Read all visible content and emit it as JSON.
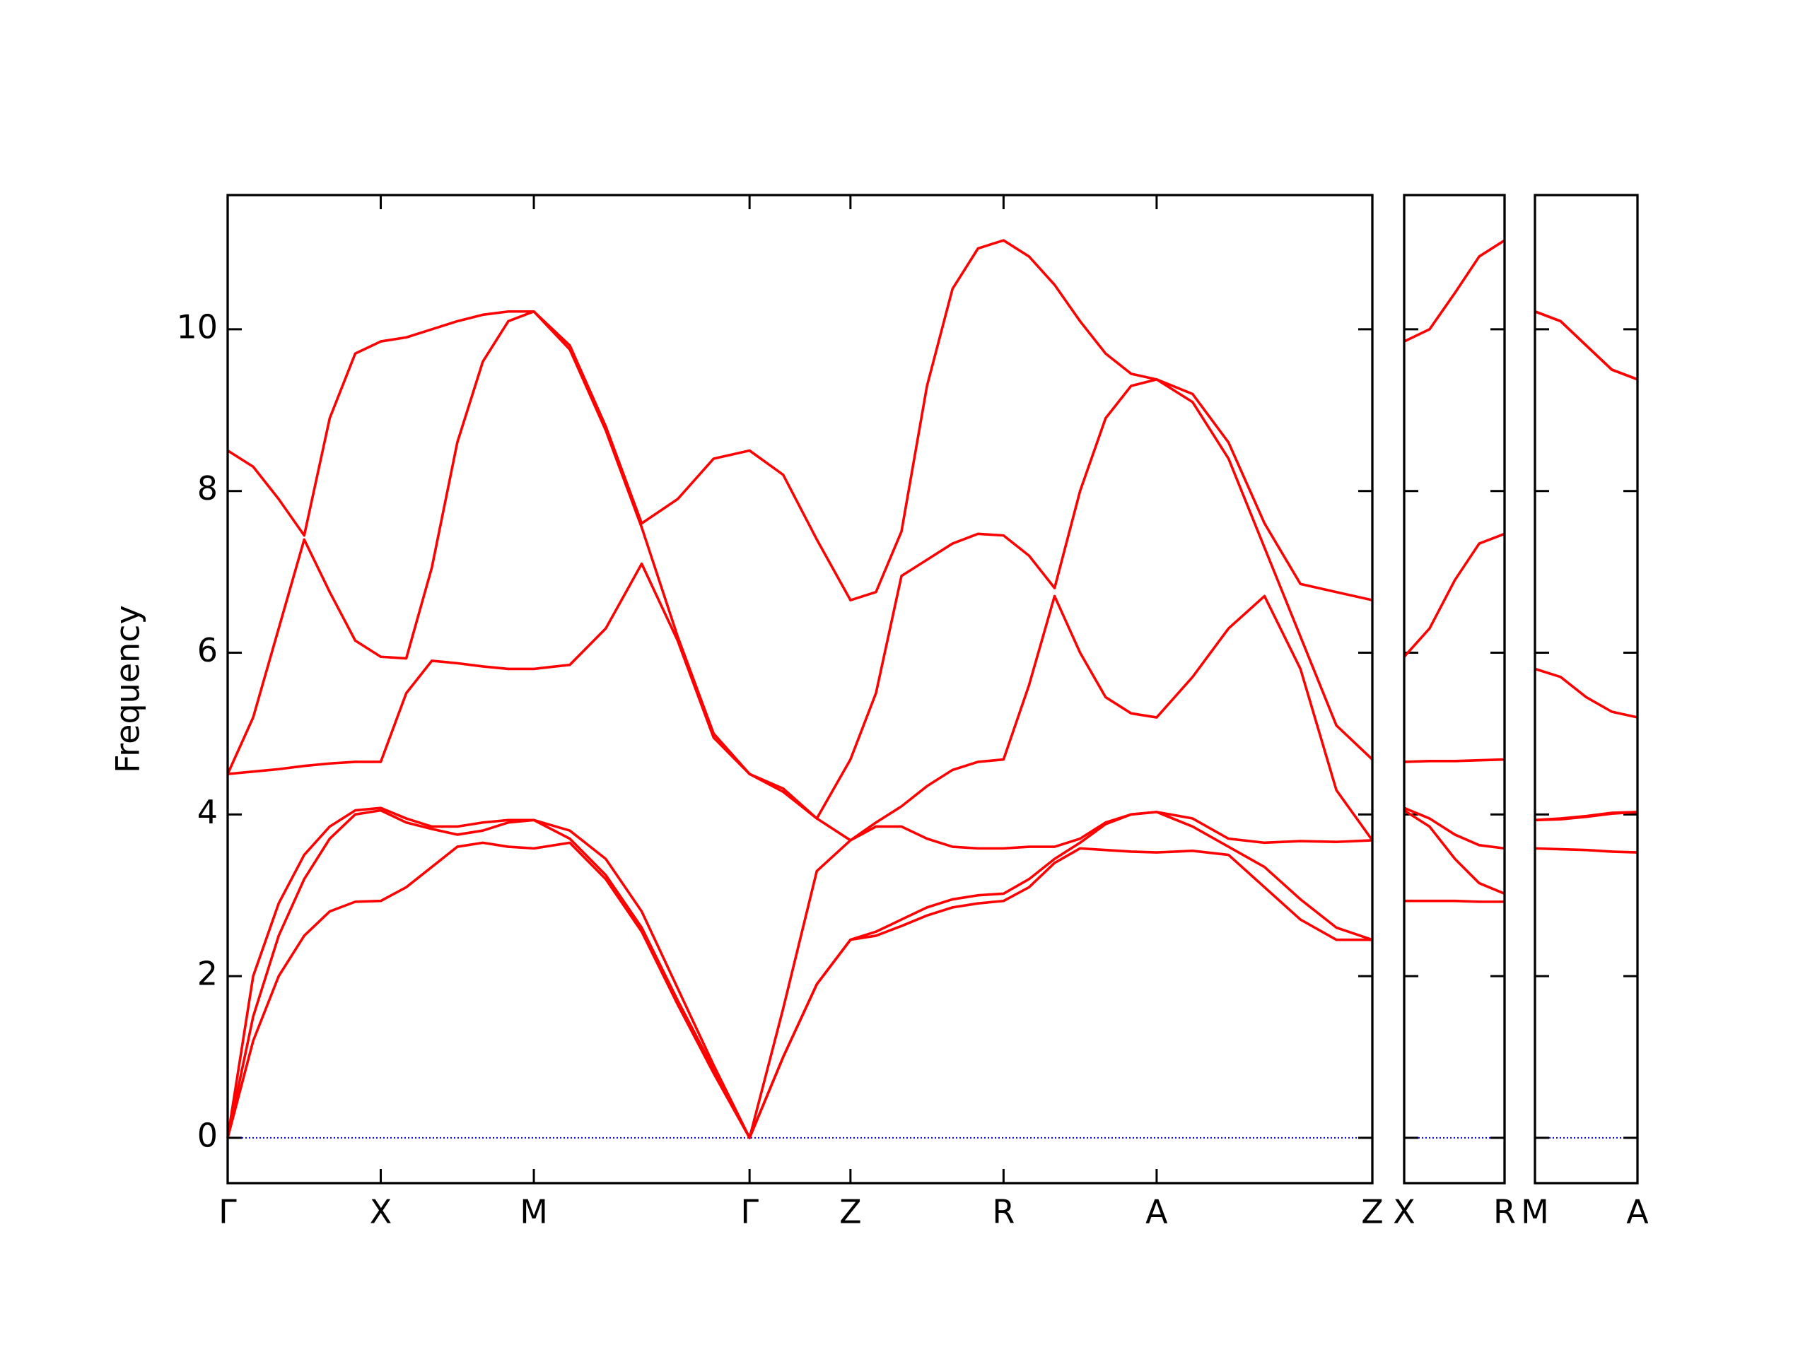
{
  "chart_data": [
    {
      "type": "line",
      "ylabel": "Frequency",
      "x": [
        0,
        0.22,
        0.44,
        0.66,
        0.88,
        1.1,
        1.32,
        1.54,
        1.76,
        1.98,
        2.2,
        2.42,
        2.64,
        2.95,
        3.26,
        3.57,
        3.88,
        4.19,
        4.5,
        4.79,
        5.08,
        5.37,
        5.59,
        5.81,
        6.03,
        6.25,
        6.47,
        6.69,
        6.91,
        7.13,
        7.35,
        7.57,
        7.79,
        8.01,
        8.32,
        8.63,
        8.94,
        9.25,
        9.56,
        9.87
      ],
      "series": [
        {
          "color": "#ff0000",
          "values": [
            8.5,
            8.3,
            7.9,
            7.45,
            8.9,
            9.7,
            9.85,
            9.9,
            10.0,
            10.1,
            10.18,
            10.22,
            10.22,
            9.8,
            8.8,
            7.6,
            7.9,
            8.4,
            8.5,
            8.2,
            7.4,
            6.65,
            6.75,
            7.5,
            9.3,
            10.5,
            11.0,
            11.1,
            10.9,
            10.55,
            10.1,
            9.7,
            9.45,
            9.38,
            9.2,
            8.6,
            7.6,
            6.85,
            6.75,
            6.65
          ]
        },
        {
          "color": "#ff0000",
          "values": [
            4.5,
            5.2,
            6.3,
            7.4,
            6.75,
            6.15,
            5.95,
            5.93,
            7.05,
            8.6,
            9.6,
            10.1,
            10.22,
            9.75,
            8.75,
            7.55,
            6.2,
            5.0,
            4.5,
            4.32,
            3.95,
            4.68,
            5.5,
            6.95,
            7.15,
            7.35,
            7.47,
            7.45,
            7.2,
            6.8,
            8.0,
            8.9,
            9.3,
            9.38,
            9.1,
            8.4,
            7.3,
            6.2,
            5.1,
            4.68
          ]
        },
        {
          "color": "#ff0000",
          "values": [
            4.5,
            4.53,
            4.56,
            4.6,
            4.63,
            4.65,
            4.65,
            5.5,
            5.9,
            5.87,
            5.83,
            5.8,
            5.8,
            5.85,
            6.3,
            7.1,
            6.15,
            4.95,
            4.5,
            4.28,
            3.95,
            3.68,
            3.9,
            4.1,
            4.35,
            4.55,
            4.65,
            4.68,
            5.6,
            6.7,
            6.0,
            5.45,
            5.25,
            5.2,
            5.7,
            6.3,
            6.7,
            5.8,
            4.3,
            3.68
          ]
        },
        {
          "color": "#ff0000",
          "values": [
            0,
            2.0,
            2.9,
            3.5,
            3.85,
            4.05,
            4.08,
            3.95,
            3.85,
            3.85,
            3.9,
            3.93,
            3.93,
            3.8,
            3.45,
            2.8,
            1.85,
            0.9,
            0,
            1.6,
            3.3,
            3.68,
            3.85,
            3.85,
            3.7,
            3.6,
            3.58,
            3.58,
            3.6,
            3.6,
            3.7,
            3.9,
            4.0,
            4.03,
            3.95,
            3.7,
            3.65,
            3.67,
            3.66,
            3.68
          ]
        },
        {
          "color": "#ff0000",
          "values": [
            0,
            1.5,
            2.5,
            3.2,
            3.7,
            4.0,
            4.05,
            3.9,
            3.82,
            3.75,
            3.8,
            3.9,
            3.93,
            3.7,
            3.25,
            2.6,
            1.7,
            0.85,
            0,
            1.0,
            1.9,
            2.45,
            2.55,
            2.7,
            2.85,
            2.95,
            3.0,
            3.02,
            3.2,
            3.45,
            3.65,
            3.88,
            4.0,
            4.03,
            3.85,
            3.6,
            3.35,
            2.95,
            2.6,
            2.45
          ]
        },
        {
          "color": "#ff0000",
          "values": [
            0,
            1.2,
            2.0,
            2.5,
            2.8,
            2.92,
            2.93,
            3.1,
            3.35,
            3.6,
            3.65,
            3.6,
            3.58,
            3.65,
            3.2,
            2.55,
            1.65,
            0.8,
            0,
            1.0,
            1.9,
            2.45,
            2.5,
            2.62,
            2.75,
            2.85,
            2.9,
            2.93,
            3.1,
            3.4,
            3.58,
            3.56,
            3.54,
            3.53,
            3.55,
            3.5,
            3.1,
            2.7,
            2.45,
            2.45
          ]
        }
      ],
      "xlim": [
        0,
        9.87
      ],
      "xticks": [
        {
          "value": 0,
          "label": "Γ"
        },
        {
          "value": 1.32,
          "label": "X"
        },
        {
          "value": 2.64,
          "label": "M"
        },
        {
          "value": 4.5,
          "label": "Γ"
        },
        {
          "value": 5.37,
          "label": "Z"
        },
        {
          "value": 6.69,
          "label": "R"
        },
        {
          "value": 8.01,
          "label": "A"
        },
        {
          "value": 9.87,
          "label": "Z"
        }
      ],
      "ylim": [
        -0.56,
        11.66
      ],
      "yticks": [
        0,
        2,
        4,
        6,
        8,
        10
      ],
      "ytick_labels": true,
      "hlines": [
        {
          "value": 0,
          "color": "#0000ff"
        }
      ]
    },
    {
      "type": "line",
      "x": [
        0,
        0.22,
        0.44,
        0.65,
        0.87
      ],
      "series": [
        {
          "color": "#ff0000",
          "values": [
            9.85,
            10.0,
            10.45,
            10.9,
            11.1
          ]
        },
        {
          "color": "#ff0000",
          "values": [
            5.95,
            6.3,
            6.9,
            7.35,
            7.47
          ]
        },
        {
          "color": "#ff0000",
          "values": [
            4.65,
            4.66,
            4.66,
            4.67,
            4.68
          ]
        },
        {
          "color": "#ff0000",
          "values": [
            4.08,
            3.95,
            3.75,
            3.62,
            3.58
          ]
        },
        {
          "color": "#ff0000",
          "values": [
            4.05,
            3.85,
            3.45,
            3.15,
            3.02
          ]
        },
        {
          "color": "#ff0000",
          "values": [
            2.93,
            2.93,
            2.93,
            2.92,
            2.92
          ]
        }
      ],
      "xlim": [
        0,
        0.87
      ],
      "xticks": [
        {
          "value": 0,
          "label": "X"
        },
        {
          "value": 0.87,
          "label": "R"
        }
      ],
      "ylim": [
        -0.56,
        11.66
      ],
      "yticks": [
        0,
        2,
        4,
        6,
        8,
        10
      ],
      "ytick_labels": false,
      "hlines": [
        {
          "value": 0,
          "color": "#0000ff"
        }
      ]
    },
    {
      "type": "line",
      "x": [
        0,
        0.22,
        0.44,
        0.66,
        0.88
      ],
      "series": [
        {
          "color": "#ff0000",
          "values": [
            10.22,
            10.1,
            9.8,
            9.5,
            9.38
          ]
        },
        {
          "color": "#ff0000",
          "values": [
            10.22,
            10.1,
            9.8,
            9.5,
            9.38
          ]
        },
        {
          "color": "#ff0000",
          "values": [
            5.8,
            5.7,
            5.45,
            5.27,
            5.2
          ]
        },
        {
          "color": "#ff0000",
          "values": [
            3.93,
            3.95,
            3.98,
            4.02,
            4.03
          ]
        },
        {
          "color": "#ff0000",
          "values": [
            3.93,
            3.94,
            3.97,
            4.01,
            4.03
          ]
        },
        {
          "color": "#ff0000",
          "values": [
            3.58,
            3.57,
            3.56,
            3.54,
            3.53
          ]
        }
      ],
      "xlim": [
        0,
        0.88
      ],
      "xticks": [
        {
          "value": 0,
          "label": "M"
        },
        {
          "value": 0.88,
          "label": "A"
        }
      ],
      "ylim": [
        -0.56,
        11.66
      ],
      "yticks": [
        0,
        2,
        4,
        6,
        8,
        10
      ],
      "ytick_labels": false,
      "hlines": [
        {
          "value": 0,
          "color": "#0000ff"
        }
      ]
    }
  ]
}
